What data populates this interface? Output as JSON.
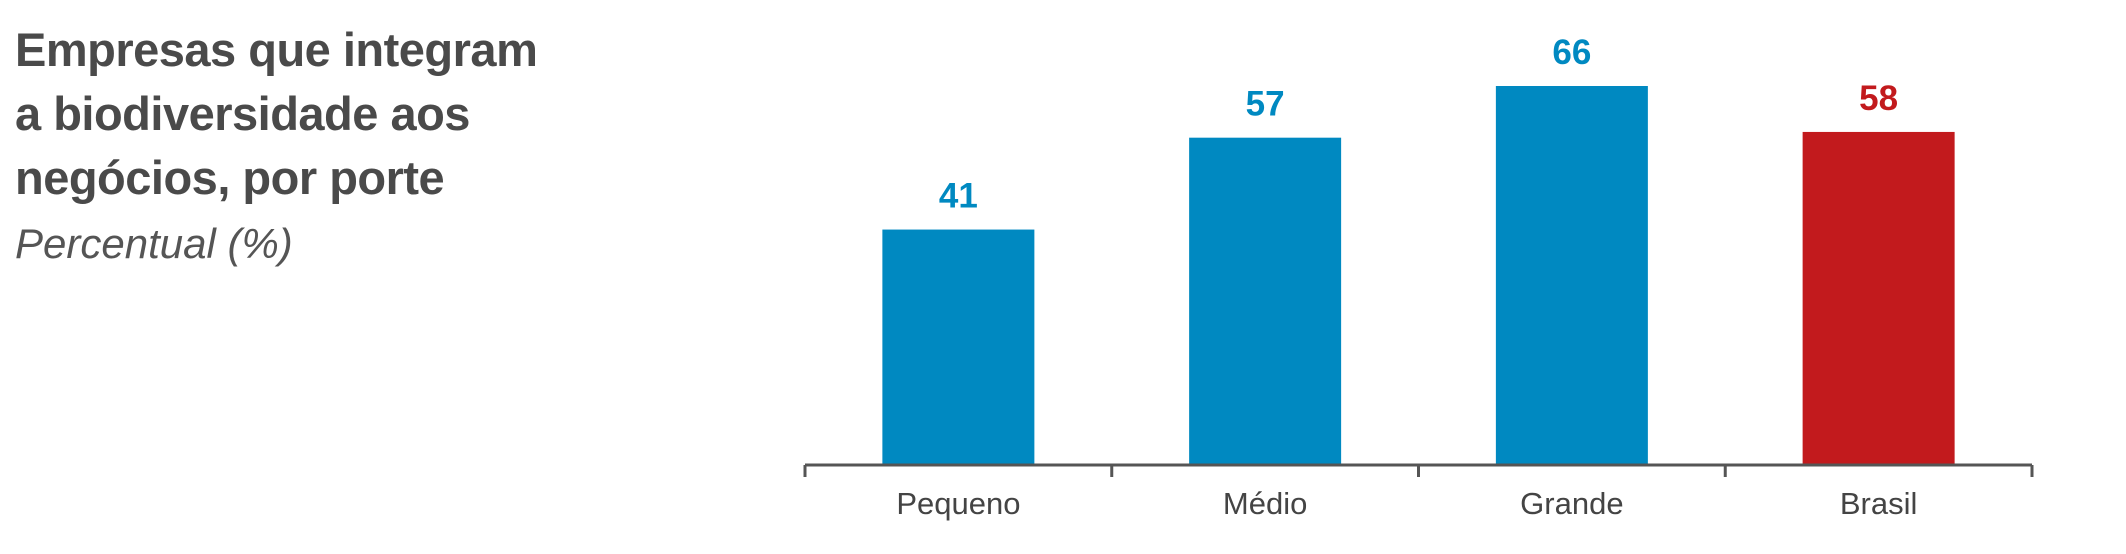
{
  "title": "Empresas que integram a biodiversidade aos negócios, por porte",
  "subtitle": "Percentual (%)",
  "colors": {
    "default_bar": "#0089c1",
    "highlight_bar": "#c21a1d",
    "axis": "#555555",
    "title_text": "#4a4a4a"
  },
  "chart_data": {
    "type": "bar",
    "title": "Empresas que integram a biodiversidade aos negócios, por porte",
    "subtitle": "Percentual (%)",
    "categories": [
      "Pequeno",
      "Médio",
      "Grande",
      "Brasil"
    ],
    "values": [
      41,
      57,
      66,
      58
    ],
    "value_labels": [
      "41",
      "57",
      "66",
      "58"
    ],
    "highlight_category": "Brasil",
    "xlabel": "",
    "ylabel": "",
    "ylim": [
      0,
      66
    ],
    "grid": false,
    "legend": "none"
  }
}
